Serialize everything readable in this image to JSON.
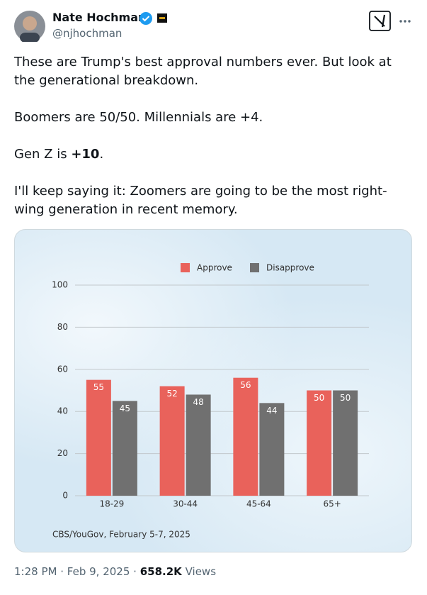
{
  "author": {
    "name": "Nate Hochman",
    "handle": "@njhochman"
  },
  "tweet": {
    "paragraphs": [
      "These are Trump's best approval numbers ever. But look at the generational breakdown.",
      "Boomers are 50/50. Millennials are +4.",
      [
        "Gen Z is ",
        "+10",
        "."
      ],
      "I'll keep saying it: Zoomers are going to be the most right-wing generation in recent memory."
    ]
  },
  "chart_data": {
    "type": "bar",
    "categories": [
      "18-29",
      "30-44",
      "45-64",
      "65+"
    ],
    "series": [
      {
        "name": "Approve",
        "color": "#e9625b",
        "values": [
          55,
          52,
          56,
          50
        ]
      },
      {
        "name": "Disapprove",
        "color": "#707070",
        "values": [
          45,
          48,
          44,
          50
        ]
      }
    ],
    "ylim": [
      0,
      100
    ],
    "yticks": [
      0,
      20,
      40,
      60,
      80,
      100
    ],
    "grid": true,
    "legend": "top",
    "source": "CBS/YouGov, February 5-7, 2025"
  },
  "footer": {
    "time": "1:28 PM",
    "separator": "·",
    "date": "Feb 9, 2025",
    "views": "658.2K",
    "views_label": "Views"
  }
}
